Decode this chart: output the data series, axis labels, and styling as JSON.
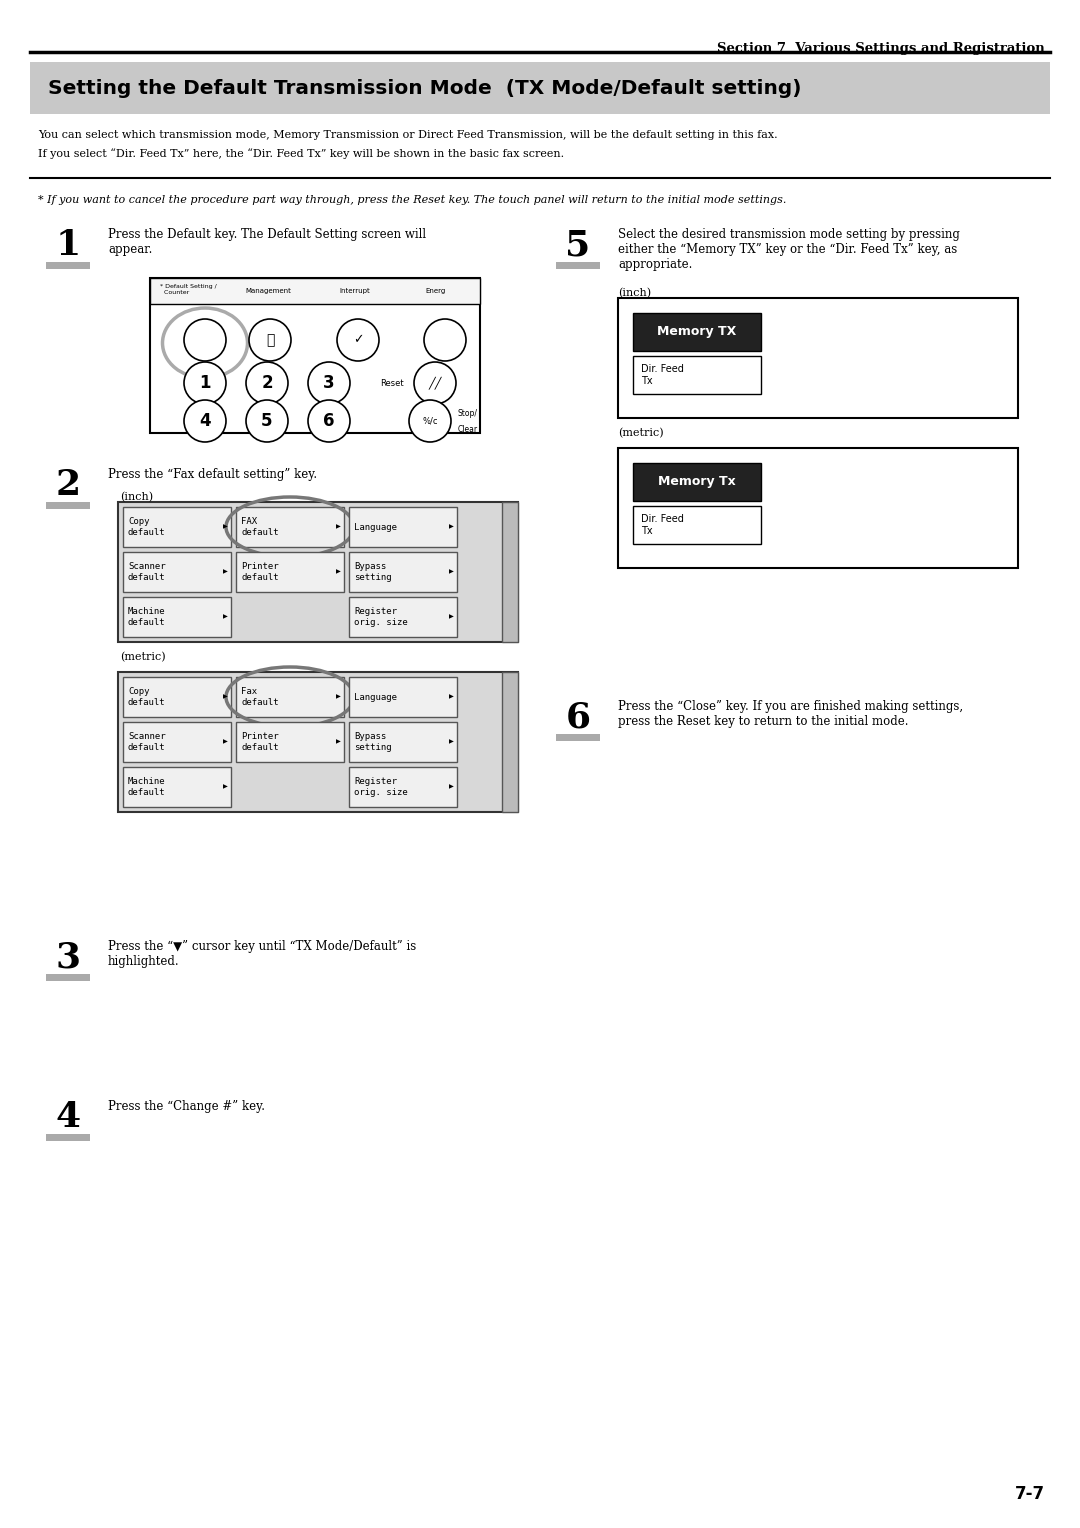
{
  "page_bg": "#ffffff",
  "section_text": "Section 7  Various Settings and Registration",
  "title_bg": "#c8c8c8",
  "title_text": "Setting the Default Transmission Mode  (TX Mode/Default setting)",
  "body_line1": "You can select which transmission mode, Memory Transmission or Direct Feed Transmission, will be the default setting in this fax.",
  "body_line2": "If you select “Dir. Feed Tx” here, the “Dir. Feed Tx” key will be shown in the basic fax screen.",
  "note_text": "* If you want to cancel the procedure part way through, press the Reset key. The touch panel will return to the initial mode settings.",
  "step1_text": "Press the Default key. The Default Setting screen will\nappear.",
  "step2_text": "Press the “Fax default setting” key.",
  "step3_text": "Press the “▼” cursor key until “TX Mode/Default” is\nhighlighted.",
  "step4_text": "Press the “Change #” key.",
  "step5_text": "Select the desired transmission mode setting by pressing\neither the “Memory TX” key or the “Dir. Feed Tx” key, as\nappropriate.",
  "step6_text": "Press the “Close” key. If you are finished making settings,\npress the Reset key to return to the initial mode.",
  "footer_text": "7-7"
}
